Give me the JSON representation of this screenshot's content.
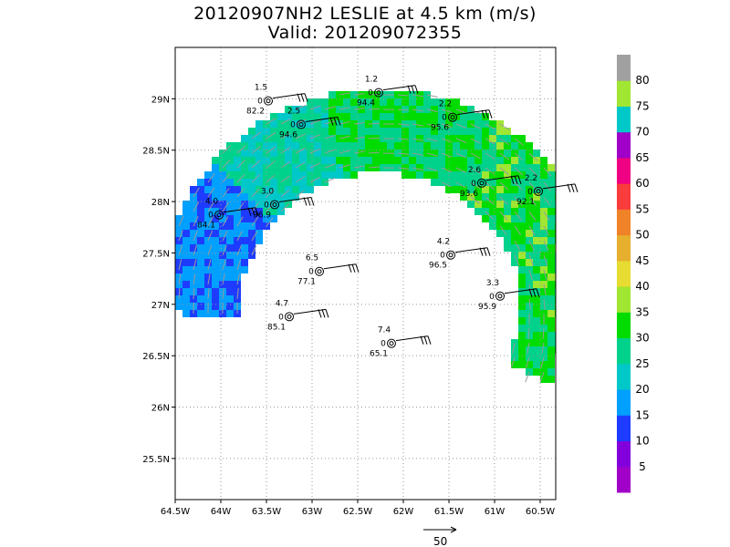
{
  "title": {
    "line1": "20120907NH2 LESLIE at 4.5 km (m/s)",
    "line2": "Valid: 201209072355"
  },
  "map": {
    "lon_range": [
      -64.5,
      -60.33
    ],
    "lat_range": [
      25.1,
      29.5
    ],
    "x_ticks": [
      "64.5W",
      "64W",
      "63.5W",
      "63W",
      "62.5W",
      "62W",
      "61.5W",
      "61W",
      "60.5W"
    ],
    "x_tick_values": [
      -64.5,
      -64.0,
      -63.5,
      -63.0,
      -62.5,
      -62.0,
      -61.5,
      -61.0,
      -60.5
    ],
    "y_ticks": [
      "25.5N",
      "26N",
      "26.5N",
      "27N",
      "27.5N",
      "28N",
      "28.5N",
      "29N"
    ],
    "y_tick_values": [
      25.5,
      26.0,
      26.5,
      27.0,
      27.5,
      28.0,
      28.5,
      29.0
    ],
    "grid": "dotted",
    "field": "wind speed (m/s) at 4.5 km, shaded, with gray wind vectors",
    "arc_center": [
      -62.25,
      26.9
    ]
  },
  "colorbar": {
    "labels": [
      "5",
      "10",
      "15",
      "20",
      "25",
      "30",
      "35",
      "40",
      "45",
      "50",
      "55",
      "60",
      "65",
      "70",
      "75",
      "80"
    ],
    "colors": [
      "#a000c8",
      "#8200dc",
      "#1e3cff",
      "#00a0ff",
      "#00c8c8",
      "#00d28c",
      "#00dc00",
      "#a0e632",
      "#e6dc32",
      "#e6af2d",
      "#f08228",
      "#fa3c3c",
      "#f00082",
      "#a000c8",
      "#00c8c8",
      "#a0e632",
      "#a0a0a0"
    ]
  },
  "stations": [
    {
      "lon": -63.48,
      "lat": 28.98,
      "top": "1.5",
      "mid": "0",
      "bottom": "82.2"
    },
    {
      "lon": -62.27,
      "lat": 29.06,
      "top": "1.2",
      "mid": "0",
      "bottom": "94.4"
    },
    {
      "lon": -63.12,
      "lat": 28.75,
      "top": "2.5",
      "mid": "0",
      "bottom": "94.6"
    },
    {
      "lon": -61.46,
      "lat": 28.82,
      "top": "2.2",
      "mid": "0",
      "bottom": "95.6"
    },
    {
      "lon": -61.14,
      "lat": 28.18,
      "top": "2.6",
      "mid": "0",
      "bottom": "93.6"
    },
    {
      "lon": -60.52,
      "lat": 28.1,
      "top": "2.2",
      "mid": "0",
      "bottom": "92.1"
    },
    {
      "lon": -64.02,
      "lat": 27.87,
      "top": "4.0",
      "mid": "0",
      "bottom": "84.1"
    },
    {
      "lon": -63.41,
      "lat": 27.97,
      "top": "3.0",
      "mid": "0",
      "bottom": "96.9"
    },
    {
      "lon": -61.48,
      "lat": 27.48,
      "top": "4.2",
      "mid": "0",
      "bottom": "96.5"
    },
    {
      "lon": -62.92,
      "lat": 27.32,
      "top": "6.5",
      "mid": "0",
      "bottom": "77.1"
    },
    {
      "lon": -60.94,
      "lat": 27.08,
      "top": "3.3",
      "mid": "0",
      "bottom": "95.9"
    },
    {
      "lon": -63.25,
      "lat": 26.88,
      "top": "4.7",
      "mid": "0",
      "bottom": "85.1"
    },
    {
      "lon": -62.13,
      "lat": 26.62,
      "top": "7.4",
      "mid": "0",
      "bottom": "65.1"
    }
  ],
  "reference_vector": {
    "label": "50"
  }
}
